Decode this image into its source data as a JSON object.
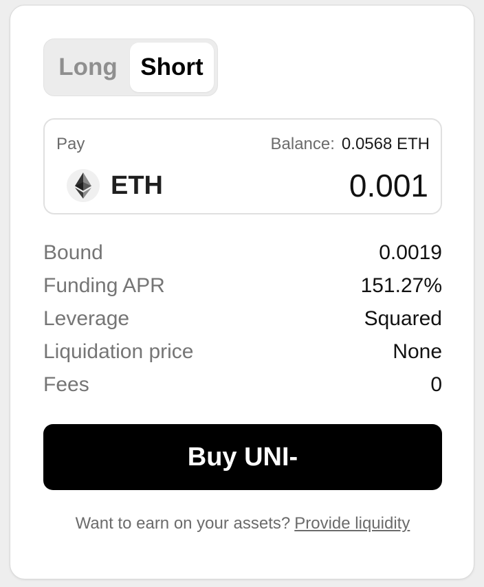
{
  "toggle": {
    "options": [
      "Long",
      "Short"
    ],
    "selected": "Short"
  },
  "pay": {
    "label": "Pay",
    "balance_label": "Balance:",
    "balance_value": "0.0568 ETH",
    "token": "ETH",
    "token_icon": "ethereum-icon",
    "amount": "0.001"
  },
  "details": [
    {
      "label": "Bound",
      "value": "0.0019"
    },
    {
      "label": "Funding APR",
      "value": "151.27%"
    },
    {
      "label": "Leverage",
      "value": "Squared"
    },
    {
      "label": "Liquidation price",
      "value": "None"
    },
    {
      "label": "Fees",
      "value": "0"
    }
  ],
  "buy_button": {
    "label": "Buy UNI-"
  },
  "footer": {
    "text": "Want to earn on your assets?",
    "link": "Provide liquidity"
  },
  "colors": {
    "primary": "#000000",
    "muted_text": "#757575",
    "toggle_bg": "#ececec"
  }
}
